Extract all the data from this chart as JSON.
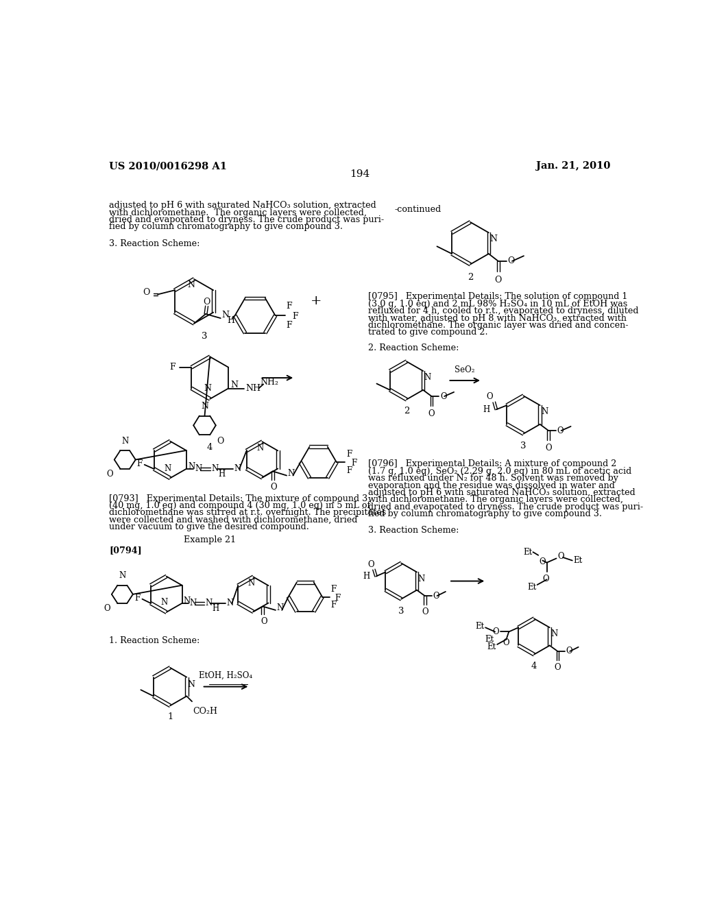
{
  "page_header_left": "US 2010/0016298 A1",
  "page_header_right": "Jan. 21, 2010",
  "page_number": "194",
  "background_color": "#ffffff",
  "text_color": "#000000",
  "body_text_left": [
    "adjusted to pH 6 with saturated NaHCO₃ solution, extracted",
    "with dichloromethane.  The organic layers were collected,",
    "dried and evaporated to dryness. The crude product was puri-",
    "fied by column chromatography to give compound 3."
  ],
  "ref_0793_lines": [
    "[0793]   Experimental Details: The mixture of compound 3",
    "(40 mg, 1.0 eq) and compound 4 (30 mg, 1.0 eq) in 5 mL of",
    "dichloromethane was stirred at r.t. overnight. The precipitates",
    "were collected and washed with dichloromethane, dried",
    "under vacuum to give the desired compound."
  ],
  "ref_0795_lines": [
    "[0795]   Experimental Details: The solution of compound 1",
    "(3.0 g, 1.0 eq) and 2 mL 98% H₂SO₄ in 10 mL of EtOH was",
    "refluxed for 4 h, cooled to r.t., evaporated to dryness, diluted",
    "with water, adjusted to pH 8 with NaHCO₃, extracted with",
    "dichloromethane. The organic layer was dried and concen-",
    "trated to give compound 2."
  ],
  "ref_0796_lines": [
    "[0796]   Experimental Details: A mixture of compound 2",
    "(1.7 g, 1.0 eq), SeO₂ (2.29 g, 2.0 eq) in 80 mL of acetic acid",
    "was refluxed under N₂ for 48 h. Solvent was removed by",
    "evaporation and the residue was dissolved in water and",
    "adjusted to pH 6 with saturated NaHCO₃ solution, extracted",
    "with dichloromethane. The organic layers were collected,",
    "dried and evaporated to dryness. The crude product was puri-",
    "fied by column chromatography to give compound 3."
  ]
}
